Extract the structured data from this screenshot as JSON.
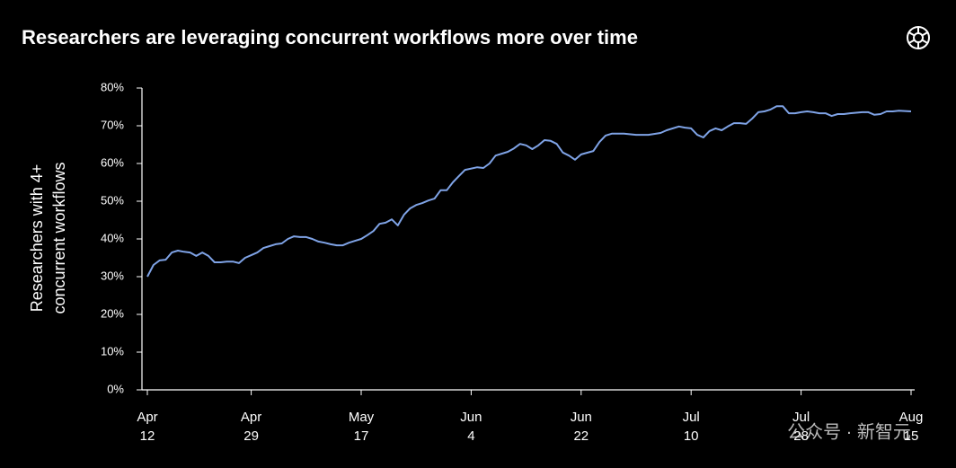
{
  "chart_data": {
    "type": "line",
    "title": "Researchers are leveraging concurrent workflows more over time",
    "ylabel": [
      "Researchers with 4+",
      "concurrent workflows"
    ],
    "watermark": "公众号 · 新智元",
    "color": "#7fa3e6",
    "x": [
      "Apr 12",
      "Apr 13",
      "Apr 14",
      "Apr 15",
      "Apr 16",
      "Apr 17",
      "Apr 18",
      "Apr 19",
      "Apr 20",
      "Apr 21",
      "Apr 22",
      "Apr 23",
      "Apr 24",
      "Apr 25",
      "Apr 26",
      "Apr 27",
      "Apr 28",
      "Apr 29",
      "Apr 30",
      "May 1",
      "May 2",
      "May 3",
      "May 4",
      "May 5",
      "May 6",
      "May 7",
      "May 8",
      "May 9",
      "May 10",
      "May 11",
      "May 12",
      "May 13",
      "May 14",
      "May 15",
      "May 16",
      "May 17",
      "May 18",
      "May 19",
      "May 20",
      "May 21",
      "May 22",
      "May 23",
      "May 24",
      "May 25",
      "May 26",
      "May 27",
      "May 28",
      "May 29",
      "May 30",
      "May 31",
      "Jun 1",
      "Jun 2",
      "Jun 3",
      "Jun 5",
      "Jun 6",
      "Jun 7",
      "Jun 8",
      "Jun 10",
      "Jun 11",
      "Jun 12",
      "Jun 13",
      "Jun 14",
      "Jun 15",
      "Jun 16",
      "Jun 17",
      "Jun 18",
      "Jun 19",
      "Jun 20",
      "Jun 21",
      "Jun 22",
      "Jun 24",
      "Jun 25",
      "Jun 26",
      "Jun 27",
      "Jun 29",
      "Jul 1",
      "Jul 3",
      "Jul 5",
      "Jul 6",
      "Jul 8",
      "Jul 9",
      "Jul 10",
      "Jul 11",
      "Jul 12",
      "Jul 13",
      "Jul 14",
      "Jul 15",
      "Jul 16",
      "Jul 17",
      "Jul 18",
      "Jul 19",
      "Jul 20",
      "Jul 21",
      "Jul 22",
      "Jul 23",
      "Jul 24",
      "Jul 25",
      "Jul 26",
      "Jul 27",
      "Jul 28",
      "Jul 29",
      "Jul 30",
      "Jul 31",
      "Aug 1",
      "Aug 2",
      "Aug 3",
      "Aug 4",
      "Aug 5",
      "Aug 7",
      "Aug 8",
      "Aug 9",
      "Aug 10",
      "Aug 11",
      "Aug 12",
      "Aug 13",
      "Aug 15"
    ],
    "values": [
      30.0,
      33.1,
      34.3,
      34.5,
      36.4,
      36.9,
      36.6,
      36.4,
      35.5,
      36.4,
      35.5,
      33.8,
      33.8,
      34.0,
      34.0,
      33.6,
      35.0,
      35.7,
      36.4,
      37.6,
      38.1,
      38.6,
      38.8,
      40.0,
      40.7,
      40.5,
      40.5,
      40.0,
      39.3,
      39.0,
      38.6,
      38.3,
      38.3,
      39.0,
      39.5,
      40.0,
      41.0,
      42.1,
      44.0,
      44.3,
      45.2,
      43.6,
      46.4,
      48.1,
      49.0,
      49.5,
      50.2,
      50.7,
      52.9,
      52.9,
      55.0,
      56.7,
      58.3,
      59.0,
      58.8,
      60.0,
      62.1,
      63.1,
      64.0,
      65.2,
      64.8,
      63.8,
      64.8,
      66.2,
      66.0,
      65.2,
      62.9,
      62.1,
      61.0,
      62.4,
      63.3,
      65.7,
      67.4,
      67.9,
      67.9,
      67.6,
      67.6,
      68.1,
      68.8,
      69.8,
      69.5,
      69.3,
      67.6,
      66.9,
      68.6,
      69.3,
      68.8,
      69.8,
      70.7,
      70.7,
      70.5,
      71.9,
      73.6,
      73.8,
      74.3,
      75.2,
      75.2,
      73.3,
      73.3,
      73.6,
      73.8,
      73.6,
      73.3,
      73.3,
      72.6,
      73.1,
      73.1,
      73.3,
      73.6,
      73.6,
      72.9,
      73.1,
      73.8,
      73.8,
      74.0,
      73.8
    ],
    "xlim": [
      "Apr 12",
      "Aug 15"
    ],
    "xticks": [
      "Apr 12",
      "Apr 29",
      "May 17",
      "Jun 4",
      "Jun 22",
      "Jul 10",
      "Jul 28",
      "Aug 15"
    ],
    "ylim": [
      0,
      80
    ],
    "yticks": [
      {
        "value": 0,
        "label": "0%"
      },
      {
        "value": 10,
        "label": "10%"
      },
      {
        "value": 20,
        "label": "20%"
      },
      {
        "value": 30,
        "label": "30%"
      },
      {
        "value": 40,
        "label": "40%"
      },
      {
        "value": 50,
        "label": "50%"
      },
      {
        "value": 60,
        "label": "60%"
      },
      {
        "value": 70,
        "label": "70%"
      },
      {
        "value": 80,
        "label": "80%"
      }
    ]
  }
}
